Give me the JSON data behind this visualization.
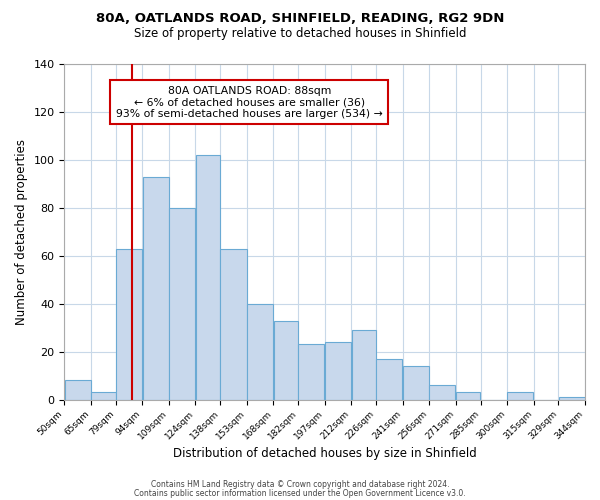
{
  "title1": "80A, OATLANDS ROAD, SHINFIELD, READING, RG2 9DN",
  "title2": "Size of property relative to detached houses in Shinfield",
  "xlabel": "Distribution of detached houses by size in Shinfield",
  "ylabel": "Number of detached properties",
  "footer1": "Contains HM Land Registry data © Crown copyright and database right 2024.",
  "footer2": "Contains public sector information licensed under the Open Government Licence v3.0.",
  "bar_edges": [
    50,
    65,
    79,
    94,
    109,
    124,
    138,
    153,
    168,
    182,
    197,
    212,
    226,
    241,
    256,
    271,
    285,
    300,
    315,
    329,
    344
  ],
  "bar_heights": [
    8,
    3,
    63,
    93,
    80,
    102,
    63,
    40,
    33,
    23,
    24,
    29,
    17,
    14,
    6,
    3,
    0,
    3,
    0,
    1
  ],
  "tick_labels": [
    "50sqm",
    "65sqm",
    "79sqm",
    "94sqm",
    "109sqm",
    "124sqm",
    "138sqm",
    "153sqm",
    "168sqm",
    "182sqm",
    "197sqm",
    "212sqm",
    "226sqm",
    "241sqm",
    "256sqm",
    "271sqm",
    "285sqm",
    "300sqm",
    "315sqm",
    "329sqm",
    "344sqm"
  ],
  "bar_color": "#c8d8ec",
  "bar_edge_color": "#6aaad4",
  "vline_x": 88,
  "vline_color": "#cc0000",
  "annotation_box_text": "80A OATLANDS ROAD: 88sqm\n← 6% of detached houses are smaller (36)\n93% of semi-detached houses are larger (534) →",
  "annotation_box_color": "#cc0000",
  "ylim": [
    0,
    140
  ],
  "yticks": [
    0,
    20,
    40,
    60,
    80,
    100,
    120,
    140
  ],
  "bg_color": "#ffffff",
  "grid_color": "#c8d8e8"
}
